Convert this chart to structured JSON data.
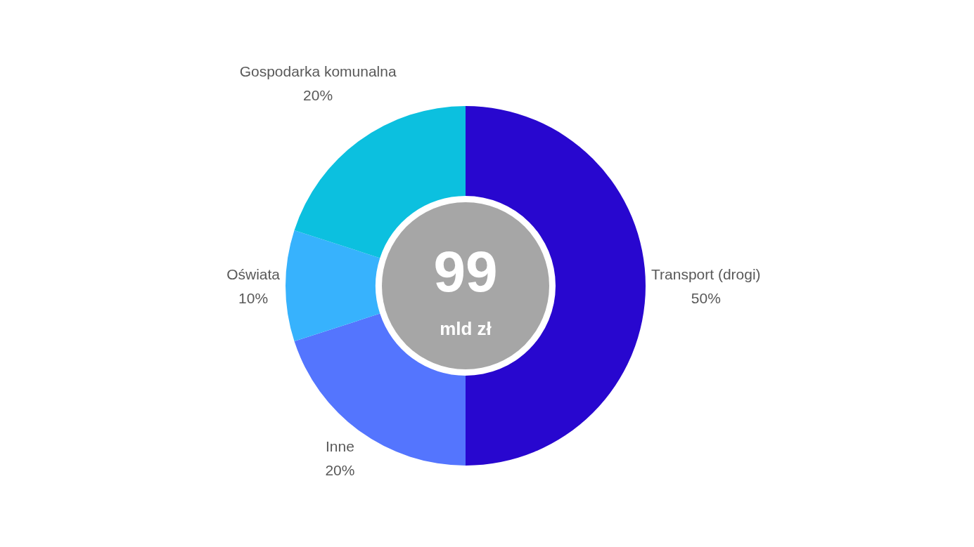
{
  "chart_data": {
    "type": "donut",
    "categories": [
      "Transport (drogi)",
      "Inne",
      "Oświata",
      "Gospodarka komunalna"
    ],
    "values": [
      50,
      20,
      10,
      20
    ],
    "colors": [
      "#2807cf",
      "#5475fe",
      "#37b2fd",
      "#0cc0df"
    ],
    "value_labels": [
      "50%",
      "20%",
      "10%",
      "20%"
    ],
    "annotations": [
      "99",
      "mld zł"
    ]
  }
}
